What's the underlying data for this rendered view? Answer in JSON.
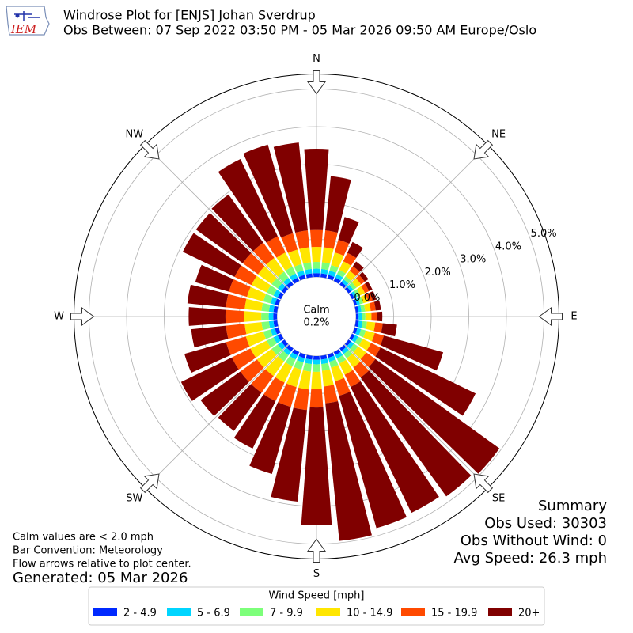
{
  "chart_data": {
    "type": "windrose",
    "title": "Windrose Plot for [ENJS] Johan Sverdrup",
    "subtitle": "Obs Between: 07 Sep 2022 03:50 PM - 05 Mar 2026 09:50 AM Europe/Oslo",
    "logo_text": "IEM",
    "x": [
      0,
      10,
      20,
      30,
      40,
      50,
      60,
      70,
      80,
      90,
      100,
      110,
      120,
      130,
      140,
      150,
      160,
      170,
      180,
      190,
      200,
      210,
      220,
      230,
      240,
      250,
      260,
      270,
      280,
      290,
      300,
      310,
      320,
      330,
      340,
      350
    ],
    "series": [
      {
        "name": "2 - 4.9",
        "color": "#0029ff",
        "values": [
          0.1,
          0.1,
          0.1,
          0.1,
          0.08,
          0.08,
          0.07,
          0.07,
          0.07,
          0.07,
          0.08,
          0.08,
          0.08,
          0.08,
          0.08,
          0.09,
          0.09,
          0.1,
          0.1,
          0.1,
          0.1,
          0.1,
          0.1,
          0.1,
          0.1,
          0.1,
          0.1,
          0.1,
          0.1,
          0.1,
          0.1,
          0.1,
          0.1,
          0.1,
          0.1,
          0.1
        ]
      },
      {
        "name": "5 - 6.9",
        "color": "#00d5ff",
        "values": [
          0.12,
          0.12,
          0.12,
          0.1,
          0.09,
          0.08,
          0.08,
          0.08,
          0.08,
          0.08,
          0.1,
          0.1,
          0.1,
          0.1,
          0.1,
          0.1,
          0.11,
          0.12,
          0.12,
          0.12,
          0.12,
          0.12,
          0.12,
          0.12,
          0.12,
          0.12,
          0.12,
          0.12,
          0.12,
          0.12,
          0.12,
          0.12,
          0.12,
          0.12,
          0.12,
          0.12
        ]
      },
      {
        "name": "7 - 9.9",
        "color": "#7dff7a",
        "values": [
          0.18,
          0.18,
          0.15,
          0.13,
          0.1,
          0.1,
          0.09,
          0.09,
          0.1,
          0.1,
          0.12,
          0.13,
          0.13,
          0.13,
          0.14,
          0.15,
          0.16,
          0.18,
          0.2,
          0.2,
          0.2,
          0.2,
          0.2,
          0.2,
          0.2,
          0.2,
          0.2,
          0.2,
          0.2,
          0.2,
          0.2,
          0.2,
          0.2,
          0.2,
          0.18,
          0.18
        ]
      },
      {
        "name": "10 - 14.9",
        "color": "#ffe600",
        "values": [
          0.4,
          0.4,
          0.35,
          0.25,
          0.18,
          0.15,
          0.14,
          0.14,
          0.15,
          0.16,
          0.22,
          0.25,
          0.25,
          0.27,
          0.3,
          0.33,
          0.38,
          0.42,
          0.45,
          0.48,
          0.48,
          0.48,
          0.48,
          0.48,
          0.48,
          0.48,
          0.45,
          0.45,
          0.45,
          0.45,
          0.45,
          0.45,
          0.45,
          0.42,
          0.4,
          0.4
        ]
      },
      {
        "name": "15 - 19.9",
        "color": "#ff4a00",
        "values": [
          0.45,
          0.45,
          0.35,
          0.25,
          0.15,
          0.12,
          0.12,
          0.12,
          0.13,
          0.14,
          0.2,
          0.25,
          0.28,
          0.3,
          0.33,
          0.36,
          0.4,
          0.45,
          0.5,
          0.55,
          0.55,
          0.55,
          0.55,
          0.55,
          0.55,
          0.55,
          0.5,
          0.5,
          0.5,
          0.5,
          0.5,
          0.5,
          0.5,
          0.48,
          0.45,
          0.45
        ]
      },
      {
        "name": "20+",
        "color": "#800000",
        "values": [
          2.16,
          1.45,
          0.63,
          0.32,
          0.15,
          0.12,
          0.1,
          0.1,
          0.14,
          0.15,
          0.38,
          1.64,
          2.81,
          4.07,
          3.9,
          3.72,
          3.66,
          3.68,
          3.13,
          2.45,
          1.85,
          1.4,
          1.25,
          1.3,
          1.5,
          1.15,
          0.93,
          0.98,
          1.03,
          0.93,
          1.53,
          1.53,
          1.58,
          2.28,
          2.45,
          2.35
        ]
      }
    ],
    "rlim": [
      0,
      5.4
    ],
    "rticks": [
      {
        "value": 0,
        "label": "0.0%"
      },
      {
        "value": 1,
        "label": "1.0%"
      },
      {
        "value": 2,
        "label": "2.0%"
      },
      {
        "value": 3,
        "label": "3.0%"
      },
      {
        "value": 4,
        "label": "4.0%"
      },
      {
        "value": 5,
        "label": "5.0%"
      }
    ],
    "direction_labels": [
      {
        "value": 0,
        "label": "N"
      },
      {
        "value": 45,
        "label": "NE"
      },
      {
        "value": 90,
        "label": "E"
      },
      {
        "value": 135,
        "label": "SE"
      },
      {
        "value": 180,
        "label": "S"
      },
      {
        "value": 225,
        "label": "SW"
      },
      {
        "value": 270,
        "label": "W"
      },
      {
        "value": 315,
        "label": "NW"
      }
    ],
    "calm": {
      "label": "Calm",
      "value": 0.2,
      "value_label": "0.2%"
    },
    "legend_title": "Wind Speed [mph]",
    "notes": [
      "Calm values are < 2.0 mph",
      "Bar Convention: Meteorology",
      "Flow arrows relative to plot center."
    ],
    "generated": "Generated: 05 Mar 2026",
    "summary": [
      "Summary",
      "Obs Used: 30303",
      "Obs Without Wind: 0",
      "Avg Speed: 26.3 mph"
    ],
    "grid": true
  }
}
